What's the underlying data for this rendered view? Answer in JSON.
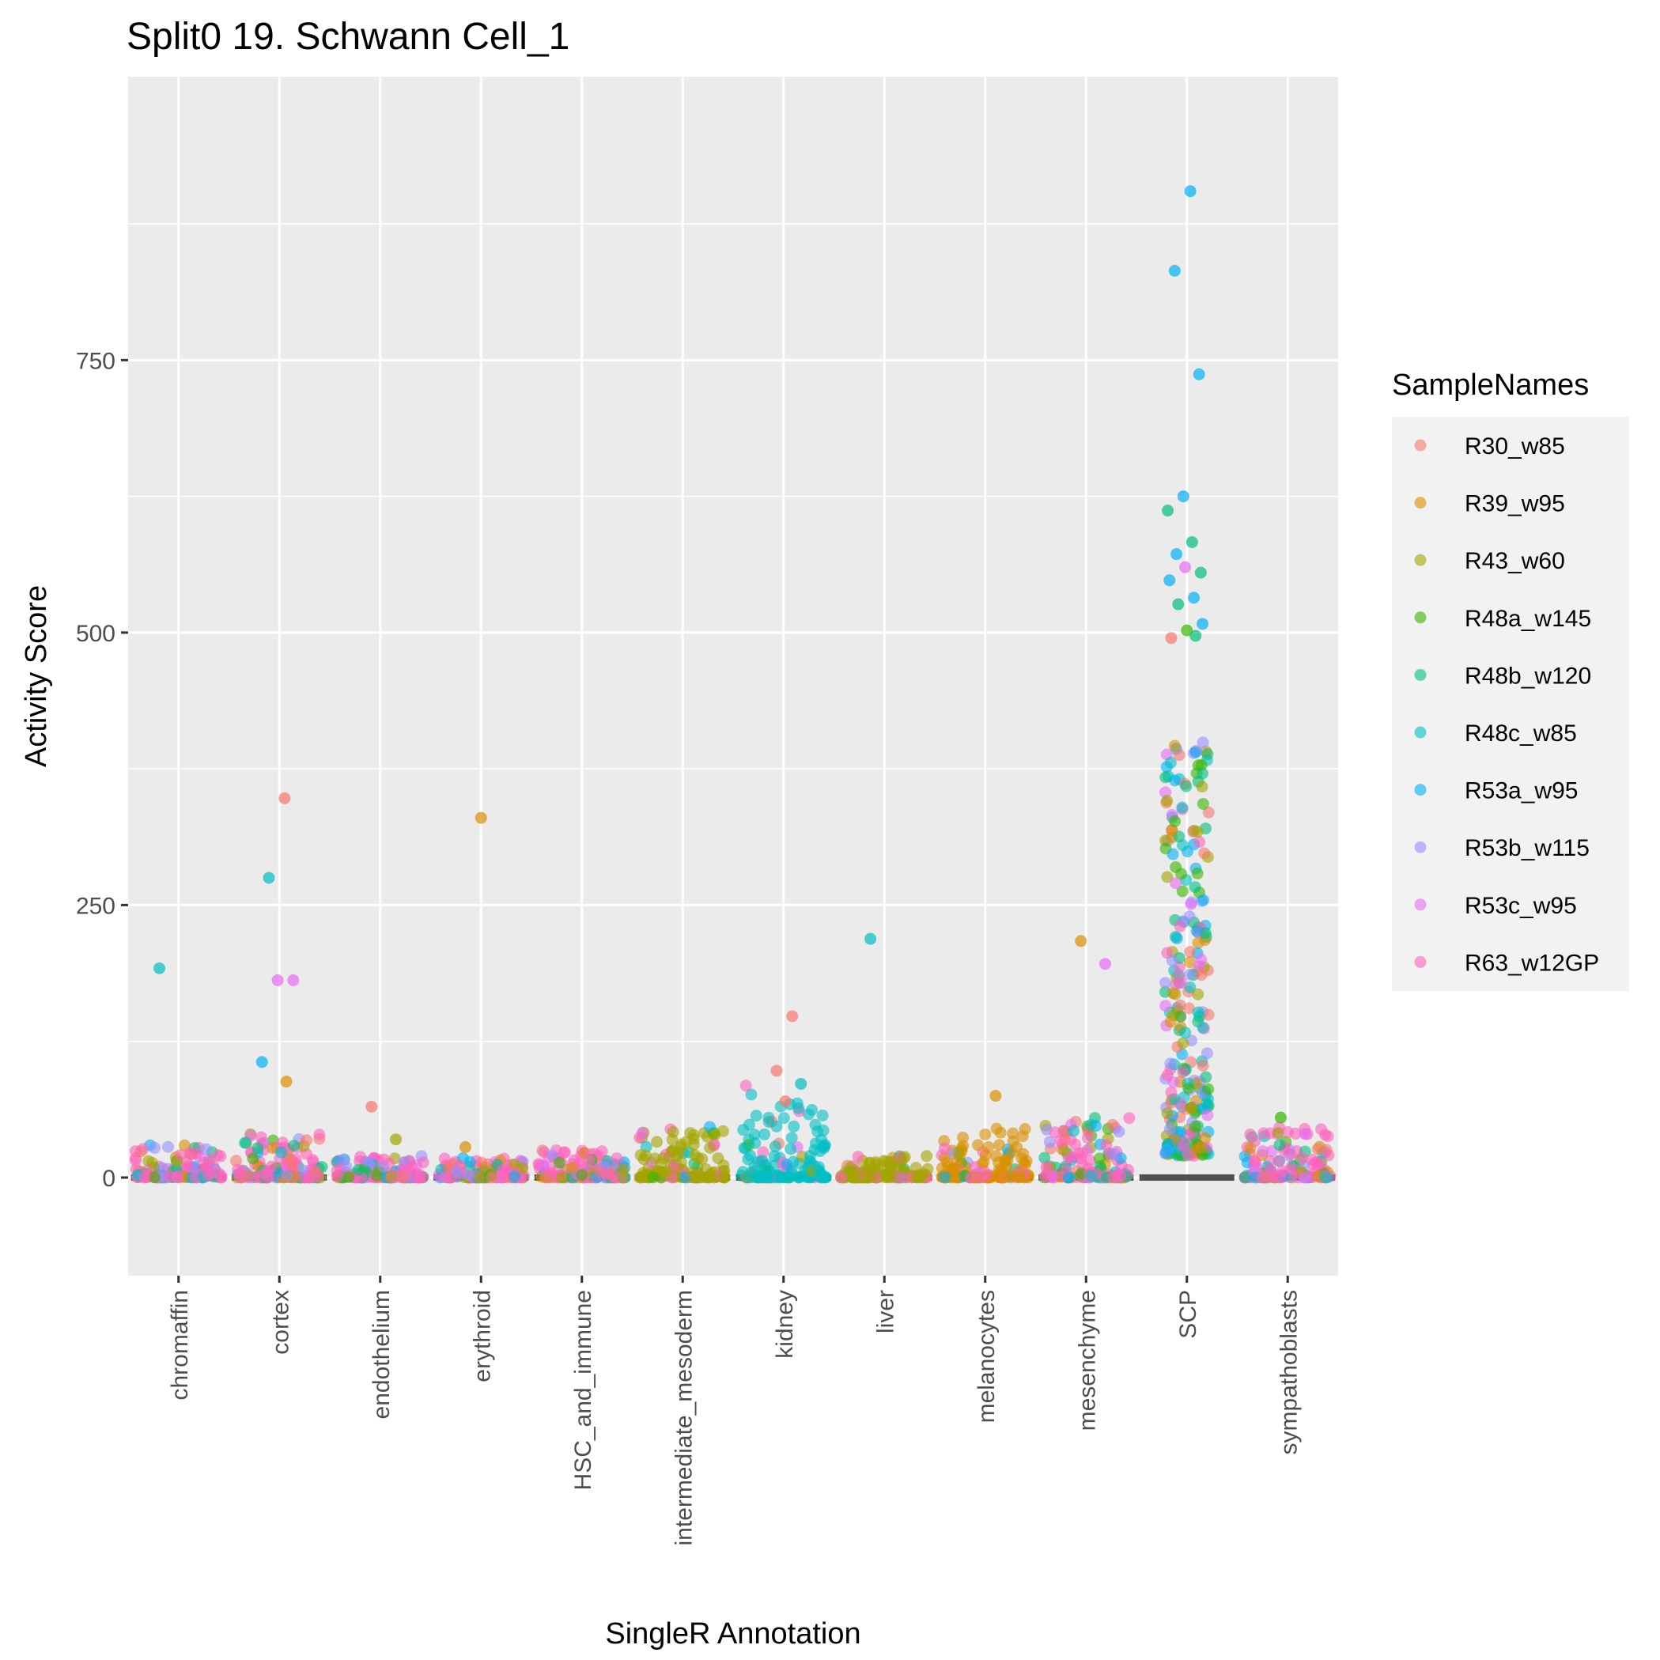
{
  "chart_data": {
    "type": "scatter",
    "title": "Split0 19. Schwann Cell_1",
    "xlabel": "SingleR Annotation",
    "ylabel": "Activity Score",
    "ylim": [
      -90,
      1010
    ],
    "y_ticks": [
      0,
      250,
      500,
      750
    ],
    "y_tick_labels": [
      "0",
      "250",
      "500",
      "750"
    ],
    "grid": true,
    "categories": [
      "chromaffin",
      "cortex",
      "endothelium",
      "erythroid",
      "HSC_and_immune",
      "intermediate_mesoderm",
      "kidney",
      "liver",
      "melanocytes",
      "mesenchyme",
      "SCP",
      "sympathoblasts"
    ],
    "legend": {
      "title": "SampleNames",
      "position": "right",
      "entries": [
        "R30_w85",
        "R39_w95",
        "R43_w60",
        "R48a_w145",
        "R48b_w120",
        "R48c_w85",
        "R53a_w95",
        "R53b_w115",
        "R53c_w95",
        "R63_w12GP"
      ],
      "colors": [
        "#F8766D",
        "#D89000",
        "#A3A500",
        "#39B600",
        "#00BF7D",
        "#00BFC4",
        "#00B0F6",
        "#9590FF",
        "#E76BF3",
        "#FF62BC"
      ]
    },
    "bulk_distribution": [
      {
        "category": "chromaffin",
        "range": [
          0,
          30
        ]
      },
      {
        "category": "cortex",
        "range": [
          0,
          40
        ]
      },
      {
        "category": "endothelium",
        "range": [
          0,
          20
        ]
      },
      {
        "category": "erythroid",
        "range": [
          0,
          18
        ]
      },
      {
        "category": "HSC_and_immune",
        "range": [
          0,
          25
        ]
      },
      {
        "category": "intermediate_mesoderm",
        "range": [
          0,
          48
        ]
      },
      {
        "category": "kidney",
        "range": [
          0,
          85
        ]
      },
      {
        "category": "liver",
        "range": [
          0,
          20
        ]
      },
      {
        "category": "melanocytes",
        "range": [
          0,
          45
        ]
      },
      {
        "category": "mesenchyme",
        "range": [
          0,
          55
        ]
      },
      {
        "category": "SCP",
        "range": [
          0,
          500
        ]
      },
      {
        "category": "sympathoblasts",
        "range": [
          0,
          50
        ]
      }
    ],
    "outliers": [
      {
        "category": "chromaffin",
        "sample": "R48c_w85",
        "y": 192
      },
      {
        "category": "cortex",
        "sample": "R30_w85",
        "y": 348
      },
      {
        "category": "cortex",
        "sample": "R48c_w85",
        "y": 275
      },
      {
        "category": "cortex",
        "sample": "R53c_w95",
        "y": 181
      },
      {
        "category": "cortex",
        "sample": "R53c_w95",
        "y": 181
      },
      {
        "category": "cortex",
        "sample": "R53a_w95",
        "y": 106
      },
      {
        "category": "cortex",
        "sample": "R39_w95",
        "y": 88
      },
      {
        "category": "endothelium",
        "sample": "R30_w85",
        "y": 65
      },
      {
        "category": "endothelium",
        "sample": "R43_w60",
        "y": 35
      },
      {
        "category": "erythroid",
        "sample": "R39_w95",
        "y": 330
      },
      {
        "category": "erythroid",
        "sample": "R39_w95",
        "y": 28
      },
      {
        "category": "kidney",
        "sample": "R30_w85",
        "y": 148
      },
      {
        "category": "kidney",
        "sample": "R30_w85",
        "y": 98
      },
      {
        "category": "kidney",
        "sample": "R48c_w85",
        "y": 86
      },
      {
        "category": "kidney",
        "sample": "R30_w85",
        "y": 70
      },
      {
        "category": "liver",
        "sample": "R48c_w85",
        "y": 219
      },
      {
        "category": "melanocytes",
        "sample": "R39_w95",
        "y": 75
      },
      {
        "category": "mesenchyme",
        "sample": "R39_w95",
        "y": 217
      },
      {
        "category": "mesenchyme",
        "sample": "R53c_w95",
        "y": 196
      },
      {
        "category": "SCP",
        "sample": "R53a_w95",
        "y": 905
      },
      {
        "category": "SCP",
        "sample": "R53a_w95",
        "y": 832
      },
      {
        "category": "SCP",
        "sample": "R53a_w95",
        "y": 737
      },
      {
        "category": "SCP",
        "sample": "R53a_w95",
        "y": 625
      },
      {
        "category": "SCP",
        "sample": "R48b_w120",
        "y": 612
      },
      {
        "category": "SCP",
        "sample": "R48b_w120",
        "y": 583
      },
      {
        "category": "SCP",
        "sample": "R53a_w95",
        "y": 572
      },
      {
        "category": "SCP",
        "sample": "R48b_w120",
        "y": 555
      },
      {
        "category": "SCP",
        "sample": "R53c_w95",
        "y": 560
      },
      {
        "category": "SCP",
        "sample": "R53a_w95",
        "y": 548
      },
      {
        "category": "SCP",
        "sample": "R53a_w95",
        "y": 532
      },
      {
        "category": "SCP",
        "sample": "R48b_w120",
        "y": 526
      },
      {
        "category": "SCP",
        "sample": "R53a_w95",
        "y": 508
      },
      {
        "category": "SCP",
        "sample": "R48a_w145",
        "y": 502
      },
      {
        "category": "SCP",
        "sample": "R30_w85",
        "y": 495
      },
      {
        "category": "SCP",
        "sample": "R48b_w120",
        "y": 497
      },
      {
        "category": "sympathoblasts",
        "sample": "R48a_w145",
        "y": 55
      },
      {
        "category": "sympathoblasts",
        "sample": "R53c_w95",
        "y": 40
      }
    ]
  }
}
